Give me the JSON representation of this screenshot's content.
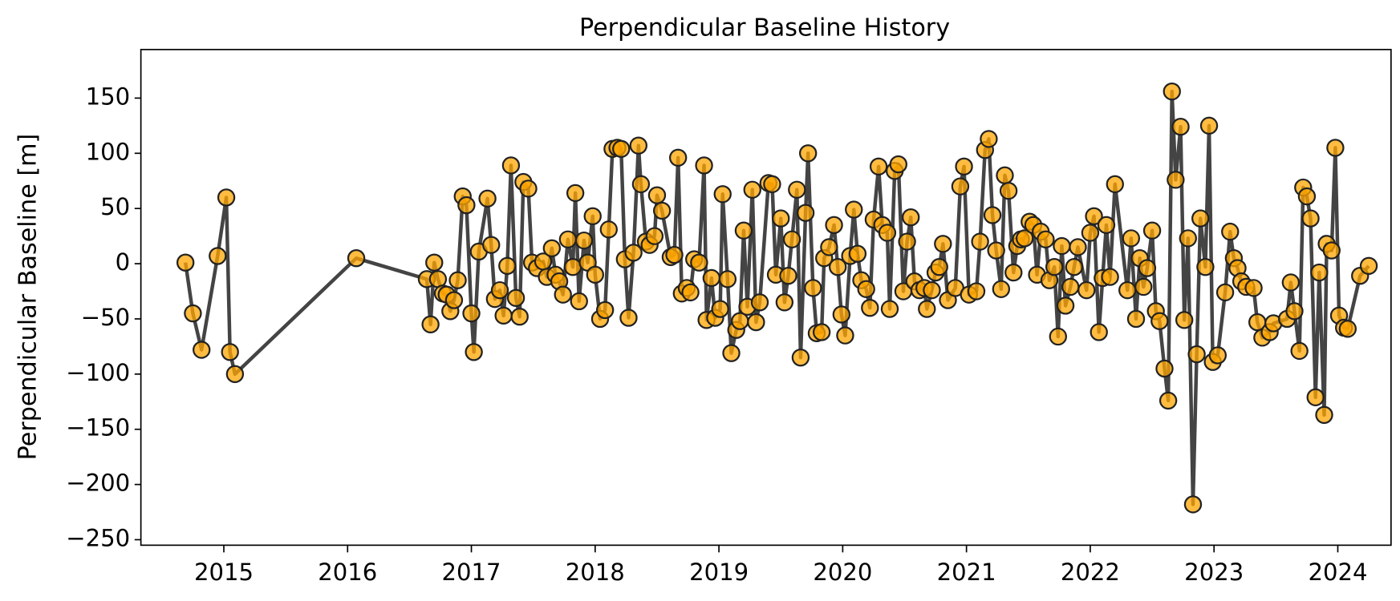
{
  "chart_data": {
    "type": "line",
    "title": "Perpendicular Baseline History",
    "ylabel": "Perpendicular Baseline [m]",
    "xlim": [
      2014.33,
      2024.43
    ],
    "xticks": [
      2015,
      2016,
      2017,
      2018,
      2019,
      2020,
      2021,
      2022,
      2023,
      2024
    ],
    "ylim": [
      -255,
      194
    ],
    "yticks": [
      150,
      100,
      50,
      0,
      {
        "value": -50,
        "label": "−50"
      },
      {
        "value": -100,
        "label": "−100"
      },
      {
        "value": -150,
        "label": "−150"
      },
      {
        "value": -200,
        "label": "−200"
      },
      {
        "value": -250,
        "label": "−250"
      }
    ],
    "grid": false,
    "series": [
      {
        "name": "Perpendicular Baseline",
        "color": "#ffa500",
        "line_color": "#444444",
        "x": [
          2014.69,
          2014.75,
          2014.82,
          2014.95,
          2015.02,
          2015.05,
          2015.09,
          2016.07,
          2016.64,
          2016.67,
          2016.7,
          2016.73,
          2016.77,
          2016.8,
          2016.83,
          2016.86,
          2016.89,
          2016.93,
          2016.96,
          2017.0,
          2017.02,
          2017.06,
          2017.13,
          2017.16,
          2017.19,
          2017.23,
          2017.26,
          2017.29,
          2017.32,
          2017.36,
          2017.39,
          2017.42,
          2017.46,
          2017.49,
          2017.53,
          2017.58,
          2017.61,
          2017.65,
          2017.68,
          2017.71,
          2017.74,
          2017.78,
          2017.82,
          2017.84,
          2017.87,
          2017.91,
          2017.94,
          2017.98,
          2018.0,
          2018.04,
          2018.08,
          2018.11,
          2018.14,
          2018.18,
          2018.21,
          2018.24,
          2018.27,
          2018.31,
          2018.35,
          2018.37,
          2018.41,
          2018.44,
          2018.48,
          2018.5,
          2018.54,
          2018.61,
          2018.64,
          2018.67,
          2018.7,
          2018.74,
          2018.77,
          2018.8,
          2018.84,
          2018.88,
          2018.9,
          2018.94,
          2018.97,
          2019.01,
          2019.03,
          2019.07,
          2019.1,
          2019.14,
          2019.17,
          2019.2,
          2019.23,
          2019.27,
          2019.3,
          2019.33,
          2019.4,
          2019.43,
          2019.46,
          2019.5,
          2019.53,
          2019.56,
          2019.59,
          2019.63,
          2019.66,
          2019.7,
          2019.72,
          2019.76,
          2019.79,
          2019.83,
          2019.85,
          2019.89,
          2019.93,
          2019.96,
          2019.99,
          2020.02,
          2020.06,
          2020.09,
          2020.12,
          2020.15,
          2020.19,
          2020.22,
          2020.25,
          2020.29,
          2020.32,
          2020.36,
          2020.38,
          2020.42,
          2020.45,
          2020.49,
          2020.52,
          2020.55,
          2020.58,
          2020.62,
          2020.66,
          2020.68,
          2020.72,
          2020.75,
          2020.78,
          2020.81,
          2020.85,
          2020.91,
          2020.95,
          2020.98,
          2021.02,
          2021.08,
          2021.11,
          2021.15,
          2021.18,
          2021.21,
          2021.24,
          2021.28,
          2021.31,
          2021.34,
          2021.38,
          2021.41,
          2021.44,
          2021.47,
          2021.51,
          2021.54,
          2021.57,
          2021.6,
          2021.64,
          2021.67,
          2021.71,
          2021.74,
          2021.77,
          2021.8,
          2021.84,
          2021.87,
          2021.9,
          2021.97,
          2022.0,
          2022.03,
          2022.07,
          2022.1,
          2022.13,
          2022.16,
          2022.2,
          2022.3,
          2022.33,
          2022.37,
          2022.4,
          2022.43,
          2022.46,
          2022.5,
          2022.53,
          2022.56,
          2022.6,
          2022.63,
          2022.66,
          2022.69,
          2022.73,
          2022.76,
          2022.79,
          2022.83,
          2022.86,
          2022.89,
          2022.93,
          2022.96,
          2022.99,
          2023.03,
          2023.09,
          2023.13,
          2023.16,
          2023.19,
          2023.22,
          2023.26,
          2023.32,
          2023.35,
          2023.39,
          2023.45,
          2023.48,
          2023.59,
          2023.62,
          2023.65,
          2023.69,
          2023.72,
          2023.75,
          2023.78,
          2023.82,
          2023.85,
          2023.89,
          2023.91,
          2023.95,
          2023.98,
          2024.01,
          2024.05,
          2024.08,
          2024.18,
          2024.25
        ],
        "values": [
          1,
          -45,
          -78,
          7,
          60,
          -80,
          -100,
          5,
          -14,
          -55,
          1,
          -14,
          -27,
          -28,
          -43,
          -33,
          -15,
          61,
          53,
          -45,
          -80,
          11,
          59,
          17,
          -32,
          -24,
          -47,
          -2,
          89,
          -31,
          -48,
          74,
          68,
          1,
          -4,
          2,
          -12,
          14,
          -10,
          -16,
          -28,
          22,
          -3,
          64,
          -34,
          21,
          1,
          43,
          -10,
          -50,
          -42,
          31,
          104,
          105,
          104,
          4,
          -49,
          10,
          107,
          72,
          20,
          17,
          25,
          62,
          48,
          6,
          8,
          96,
          -27,
          -22,
          -26,
          4,
          1,
          89,
          -51,
          -13,
          -49,
          -41,
          63,
          -14,
          -81,
          -60,
          -52,
          30,
          -39,
          67,
          -53,
          -35,
          73,
          72,
          -10,
          41,
          -35,
          -11,
          22,
          67,
          -85,
          46,
          100,
          -22,
          -63,
          -62,
          5,
          15,
          35,
          -3,
          -46,
          -65,
          7,
          49,
          9,
          -15,
          -23,
          -40,
          40,
          88,
          35,
          28,
          -41,
          84,
          90,
          -25,
          20,
          42,
          -16,
          -24,
          -22,
          -41,
          -24,
          -8,
          -3,
          18,
          -33,
          -22,
          70,
          88,
          -28,
          -25,
          20,
          103,
          113,
          44,
          12,
          -23,
          80,
          66,
          -8,
          16,
          22,
          23,
          38,
          35,
          -10,
          29,
          22,
          -15,
          -3,
          -66,
          16,
          -38,
          -21,
          -3,
          15,
          -24,
          28,
          43,
          -62,
          -13,
          35,
          -12,
          72,
          -24,
          23,
          -50,
          5,
          -21,
          -4,
          30,
          -43,
          -52,
          -95,
          -124,
          156,
          76,
          124,
          -51,
          23,
          -218,
          -82,
          41,
          -3,
          125,
          -89,
          -83,
          -26,
          29,
          5,
          -4,
          -16,
          -21,
          -22,
          -53,
          -67,
          -62,
          -54,
          -50,
          -17,
          -43,
          -79,
          69,
          61,
          41,
          -121,
          -8,
          -137,
          18,
          12,
          105,
          -47,
          -58,
          -59,
          -11,
          -2
        ]
      }
    ]
  }
}
